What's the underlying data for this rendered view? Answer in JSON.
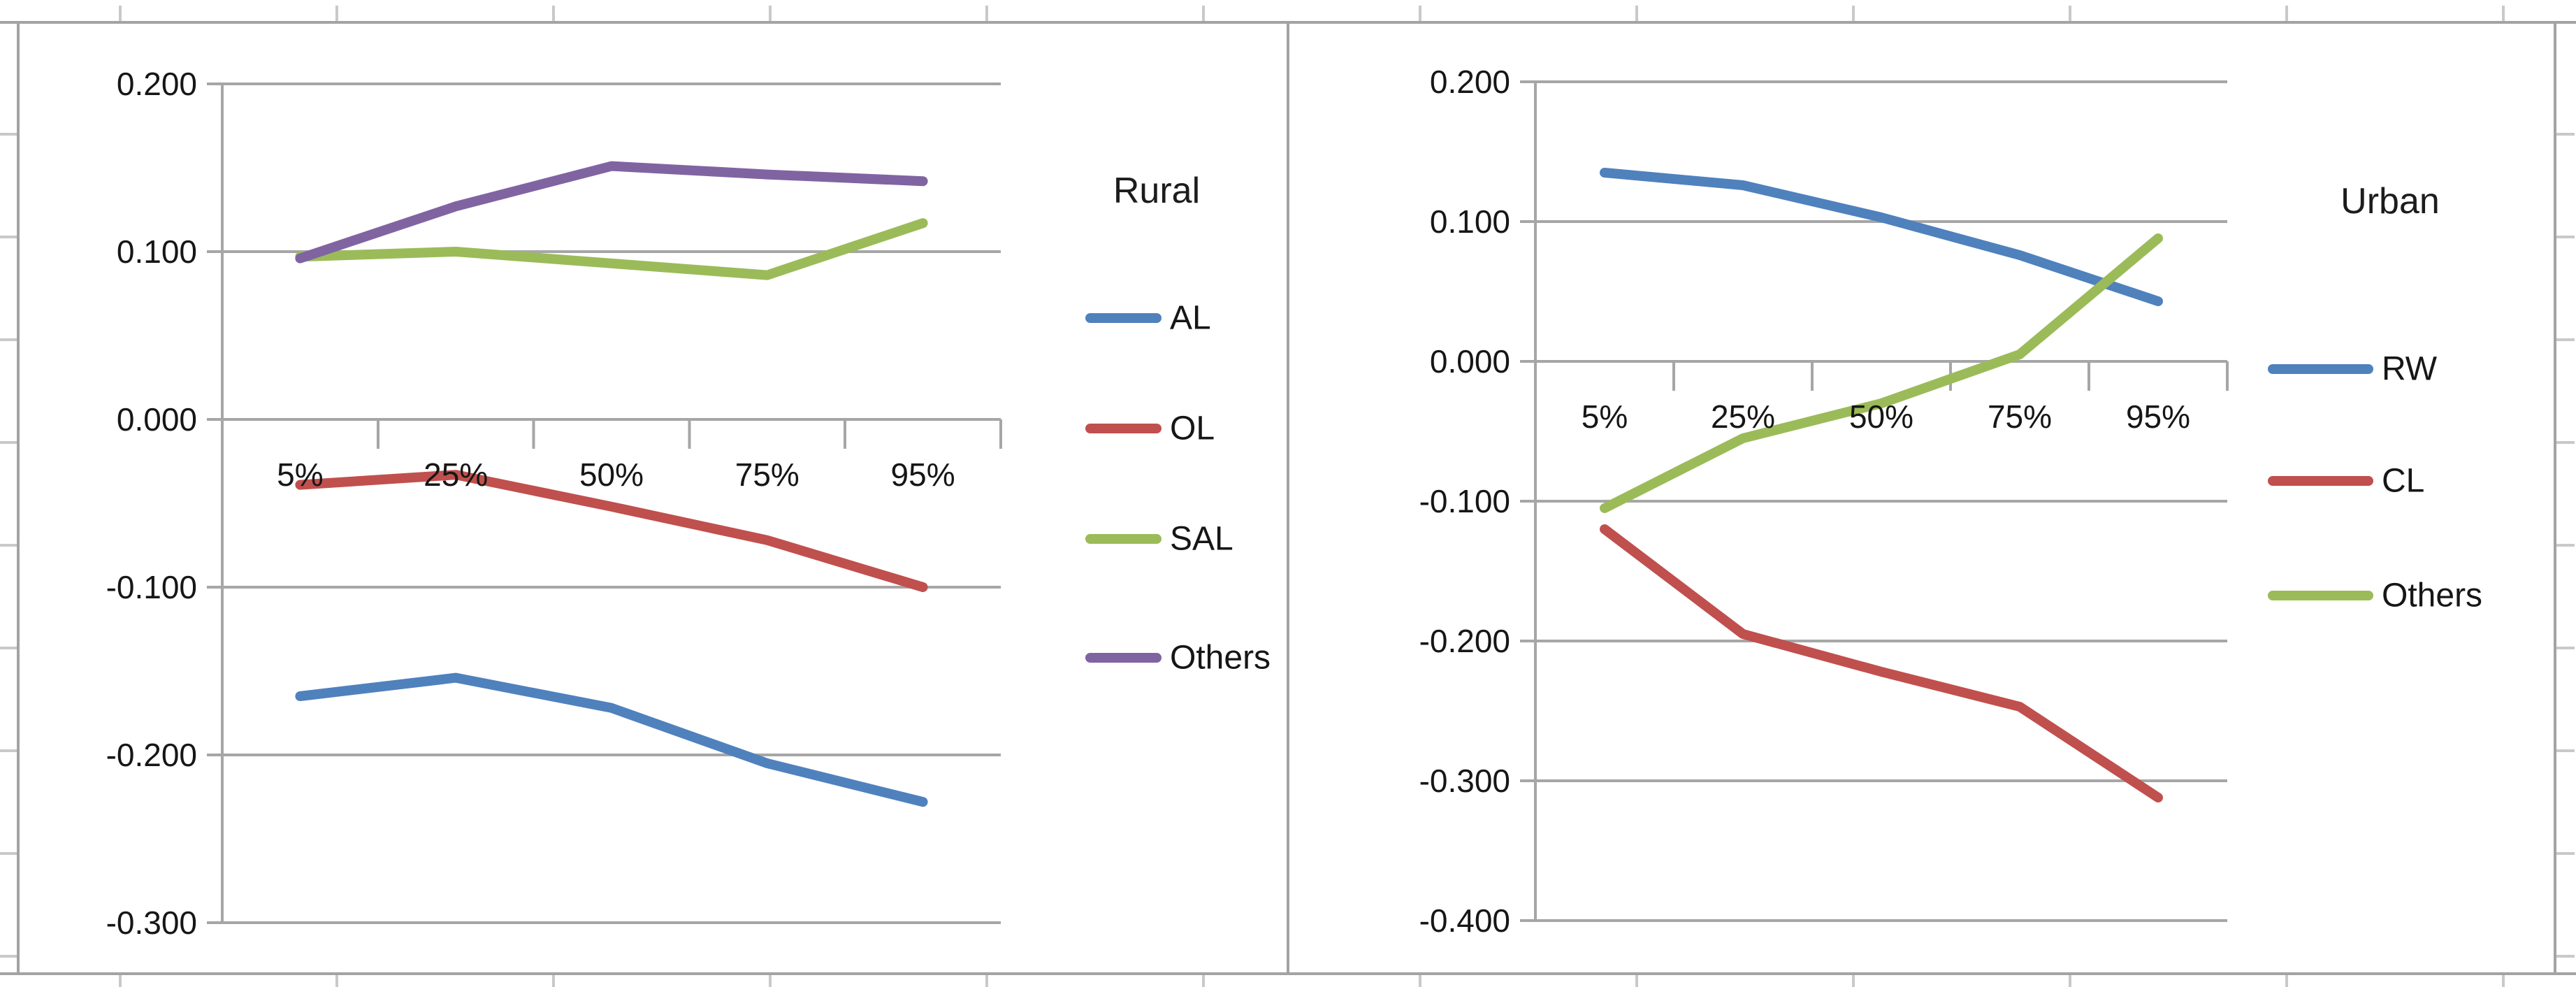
{
  "chart_data": [
    {
      "id": "rural",
      "type": "line",
      "title": "Rural",
      "legend_position": "right",
      "grid": true,
      "categories": [
        "5%",
        "25%",
        "50%",
        "75%",
        "95%"
      ],
      "xlabel": "",
      "ylabel": "",
      "ylim": [
        -0.3,
        0.2
      ],
      "y_ticks": [
        "0.200",
        "0.100",
        "0.000",
        "-0.100",
        "-0.200",
        "-0.300"
      ],
      "series": [
        {
          "name": "AL",
          "color": "#4F81BD",
          "values": [
            -0.165,
            -0.154,
            -0.172,
            -0.205,
            -0.228
          ]
        },
        {
          "name": "OL",
          "color": "#C0504D",
          "values": [
            -0.039,
            -0.033,
            -0.052,
            -0.072,
            -0.1
          ]
        },
        {
          "name": "SAL",
          "color": "#9BBB59",
          "values": [
            0.097,
            0.1,
            0.093,
            0.086,
            0.117
          ]
        },
        {
          "name": "Others",
          "color": "#8064A2",
          "values": [
            0.096,
            0.127,
            0.151,
            0.146,
            0.142
          ]
        }
      ]
    },
    {
      "id": "urban",
      "type": "line",
      "title": "Urban",
      "legend_position": "right",
      "grid": true,
      "categories": [
        "5%",
        "25%",
        "50%",
        "75%",
        "95%"
      ],
      "xlabel": "",
      "ylabel": "",
      "ylim": [
        -0.4,
        0.2
      ],
      "y_ticks": [
        "0.200",
        "0.100",
        "0.000",
        "-0.100",
        "-0.200",
        "-0.300",
        "-0.400"
      ],
      "series": [
        {
          "name": "RW",
          "color": "#4F81BD",
          "values": [
            0.135,
            0.126,
            0.103,
            0.076,
            0.043
          ]
        },
        {
          "name": "CL",
          "color": "#C0504D",
          "values": [
            -0.12,
            -0.195,
            -0.222,
            -0.247,
            -0.312
          ]
        },
        {
          "name": "Others",
          "color": "#9BBB59",
          "values": [
            -0.105,
            -0.055,
            -0.03,
            0.005,
            0.088
          ]
        }
      ]
    }
  ],
  "colors": {
    "gridline": "#a6a6a6",
    "frame": "#a3a3a3",
    "text": "#161616"
  }
}
